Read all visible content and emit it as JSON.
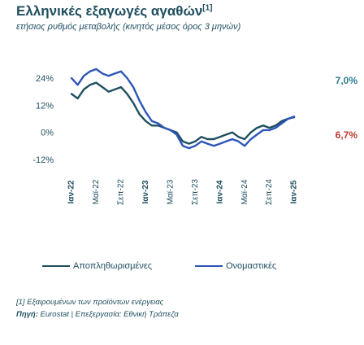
{
  "header": {
    "title": "Ελληνικές εξαγωγές αγαθών",
    "title_note": "[1]",
    "subtitle": "ετήσιος ρυθμός μεταβολής (κινητός μέσος όρος 3 μηνών)"
  },
  "chart_data": {
    "type": "line",
    "x": [
      "Ιαν-22",
      "Φεβ-22",
      "Μαρ-22",
      "Απρ-22",
      "Μάι-22",
      "Ιουν-22",
      "Ιουλ-22",
      "Αυγ-22",
      "Σεπ-22",
      "Οκτ-22",
      "Νοε-22",
      "Δεκ-22",
      "Ιαν-23",
      "Φεβ-23",
      "Μαρ-23",
      "Απρ-23",
      "Μάι-23",
      "Ιουν-23",
      "Ιουλ-23",
      "Αυγ-23",
      "Σεπ-23",
      "Οκτ-23",
      "Νοε-23",
      "Δεκ-23",
      "Ιαν-24",
      "Φεβ-24",
      "Μαρ-24",
      "Απρ-24",
      "Μάι-24",
      "Ιουν-24",
      "Ιουλ-24",
      "Αυγ-24",
      "Σεπ-24",
      "Οκτ-24",
      "Νοε-24",
      "Δεκ-24",
      "Ιαν-25"
    ],
    "x_tick_labels": [
      "Ιαν-22",
      "Μαϊ-22",
      "Σεπ-22",
      "Ιαν-23",
      "Μαϊ-23",
      "Σεπ-23",
      "Ιαν-24",
      "Μαϊ-24",
      "Σεπ-24",
      "Ιαν-25"
    ],
    "x_tick_bold": [
      true,
      false,
      false,
      true,
      false,
      false,
      true,
      false,
      false,
      true
    ],
    "y_ticks": [
      "24%",
      "12%",
      "0%",
      "-12%"
    ],
    "ylim": [
      -12,
      24
    ],
    "series": [
      {
        "name": "Αποπληθωρισμένες",
        "color": "#1f4e5f",
        "end_label": "6,7%",
        "values": [
          17,
          15,
          19,
          21,
          22,
          20,
          18,
          19,
          20,
          17,
          13,
          8,
          5,
          3,
          3,
          2,
          1,
          0,
          -4,
          -5,
          -4,
          -2,
          -3,
          -3,
          -2,
          -1,
          0,
          -2,
          -3,
          0,
          2,
          3,
          2,
          3,
          5,
          6,
          6.7
        ]
      },
      {
        "name": "Ονομαστικές",
        "color": "#2b56b8",
        "end_label": "7,0%",
        "values": [
          24,
          21,
          25,
          27,
          28,
          26,
          25,
          26,
          27,
          24,
          20,
          14,
          9,
          5,
          4,
          2,
          1,
          -1,
          -6,
          -7,
          -6,
          -4,
          -5,
          -6,
          -5,
          -4,
          -3,
          -4,
          -6,
          -3,
          -1,
          1,
          1,
          2,
          4,
          6,
          7.0
        ]
      }
    ],
    "end_label_colors": [
      "#2a7d8c",
      "#c0392b"
    ]
  },
  "legend": {
    "items": [
      "Αποπληθωρισμένες",
      "Ονομαστικές"
    ]
  },
  "footer": {
    "footnote": "[1] Εξαιρουμένων των προϊόντων ενέργειας",
    "source_prefix": "Πηγή: ",
    "source_text": "Eurostat | Επεξεργασία: Εθνική Τράπεζα"
  }
}
